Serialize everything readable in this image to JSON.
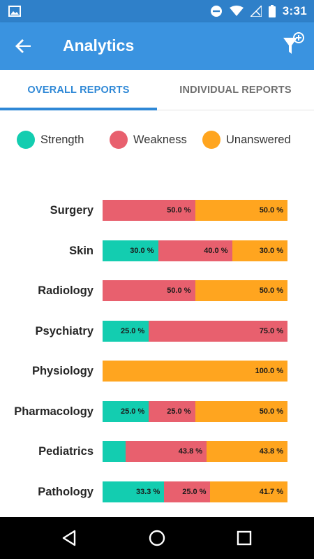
{
  "status_bar": {
    "time": "3:31",
    "icons": [
      "image-icon",
      "do-not-disturb-icon",
      "wifi-icon",
      "no-sim-icon",
      "battery-icon"
    ]
  },
  "app_bar": {
    "title": "Analytics",
    "back_icon": "arrow-back-icon",
    "filter_icon": "filter-add-icon"
  },
  "tabs": [
    {
      "label": "OVERALL REPORTS",
      "active": true
    },
    {
      "label": "INDIVIDUAL REPORTS",
      "active": false
    }
  ],
  "legend": [
    {
      "label": "Strength",
      "color": "#13cdb0"
    },
    {
      "label": "Weakness",
      "color": "#e8606e"
    },
    {
      "label": "Unanswered",
      "color": "#ffa51f"
    }
  ],
  "chart_data": {
    "type": "bar",
    "orientation": "horizontal",
    "stacked": true,
    "categories": [
      "Surgery",
      "Skin",
      "Radiology",
      "Psychiatry",
      "Physiology",
      "Pharmacology",
      "Pediatrics",
      "Pathology"
    ],
    "series": [
      {
        "name": "Strength",
        "color": "#13cdb0",
        "values": [
          0,
          30.0,
          0,
          25.0,
          0,
          25.0,
          12.5,
          33.3
        ],
        "labels": [
          "",
          "30.0 %",
          "",
          "25.0 %",
          "",
          "25.0 %",
          "",
          "33.3 %"
        ]
      },
      {
        "name": "Weakness",
        "color": "#e8606e",
        "values": [
          50.0,
          40.0,
          50.0,
          75.0,
          0,
          25.0,
          43.8,
          25.0
        ],
        "labels": [
          "50.0 %",
          "40.0 %",
          "50.0 %",
          "75.0 %",
          "",
          "25.0 %",
          "43.8 %",
          "25.0 %"
        ]
      },
      {
        "name": "Unanswered",
        "color": "#ffa51f",
        "values": [
          50.0,
          30.0,
          50.0,
          0,
          100.0,
          50.0,
          43.8,
          41.7
        ],
        "labels": [
          "50.0 %",
          "30.0 %",
          "50.0 %",
          "",
          "100.0 %",
          "50.0 %",
          "43.8 %",
          "41.7 %"
        ]
      }
    ],
    "xlim": [
      0,
      100
    ]
  },
  "nav_bar": {
    "icons": [
      "back-triangle-icon",
      "home-circle-icon",
      "recents-square-icon"
    ]
  }
}
